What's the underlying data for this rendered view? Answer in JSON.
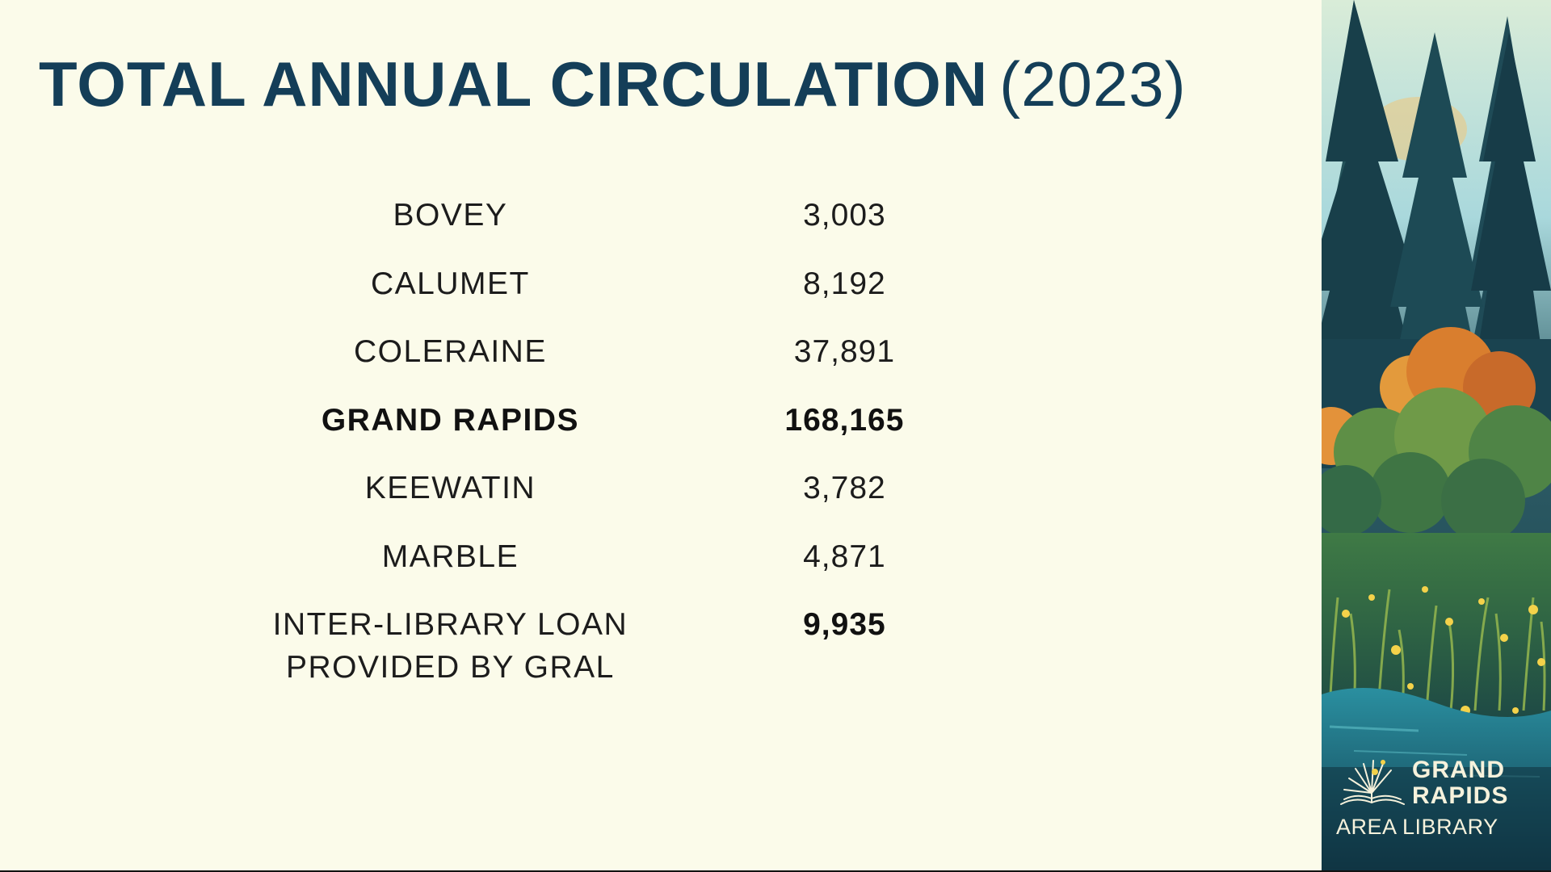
{
  "slide": {
    "title_main": "TOTAL ANNUAL CIRCULATION",
    "title_year": "(2023)"
  },
  "circulation": [
    {
      "name": "BOVEY",
      "value": "3,003",
      "bold": false
    },
    {
      "name": "CALUMET",
      "value": "8,192",
      "bold": false
    },
    {
      "name": "COLERAINE",
      "value": "37,891",
      "bold": false
    },
    {
      "name": "GRAND RAPIDS",
      "value": "168,165",
      "bold": true
    },
    {
      "name": "KEEWATIN",
      "value": "3,782",
      "bold": false
    },
    {
      "name": "MARBLE",
      "value": "4,871",
      "bold": false
    },
    {
      "name": "INTER-LIBRARY LOAN",
      "name_line2": "PROVIDED BY GRAL",
      "value": "9,935",
      "bold_value": true
    }
  ],
  "logo": {
    "line1": "GRAND",
    "line2": "RAPIDS",
    "line3": "AREA LIBRARY",
    "icon": "open-book-sunburst-icon"
  },
  "colors": {
    "background": "#fbfbea",
    "title": "#143e58",
    "text": "#1c1c1c",
    "logo_text": "#f6f2dc"
  }
}
